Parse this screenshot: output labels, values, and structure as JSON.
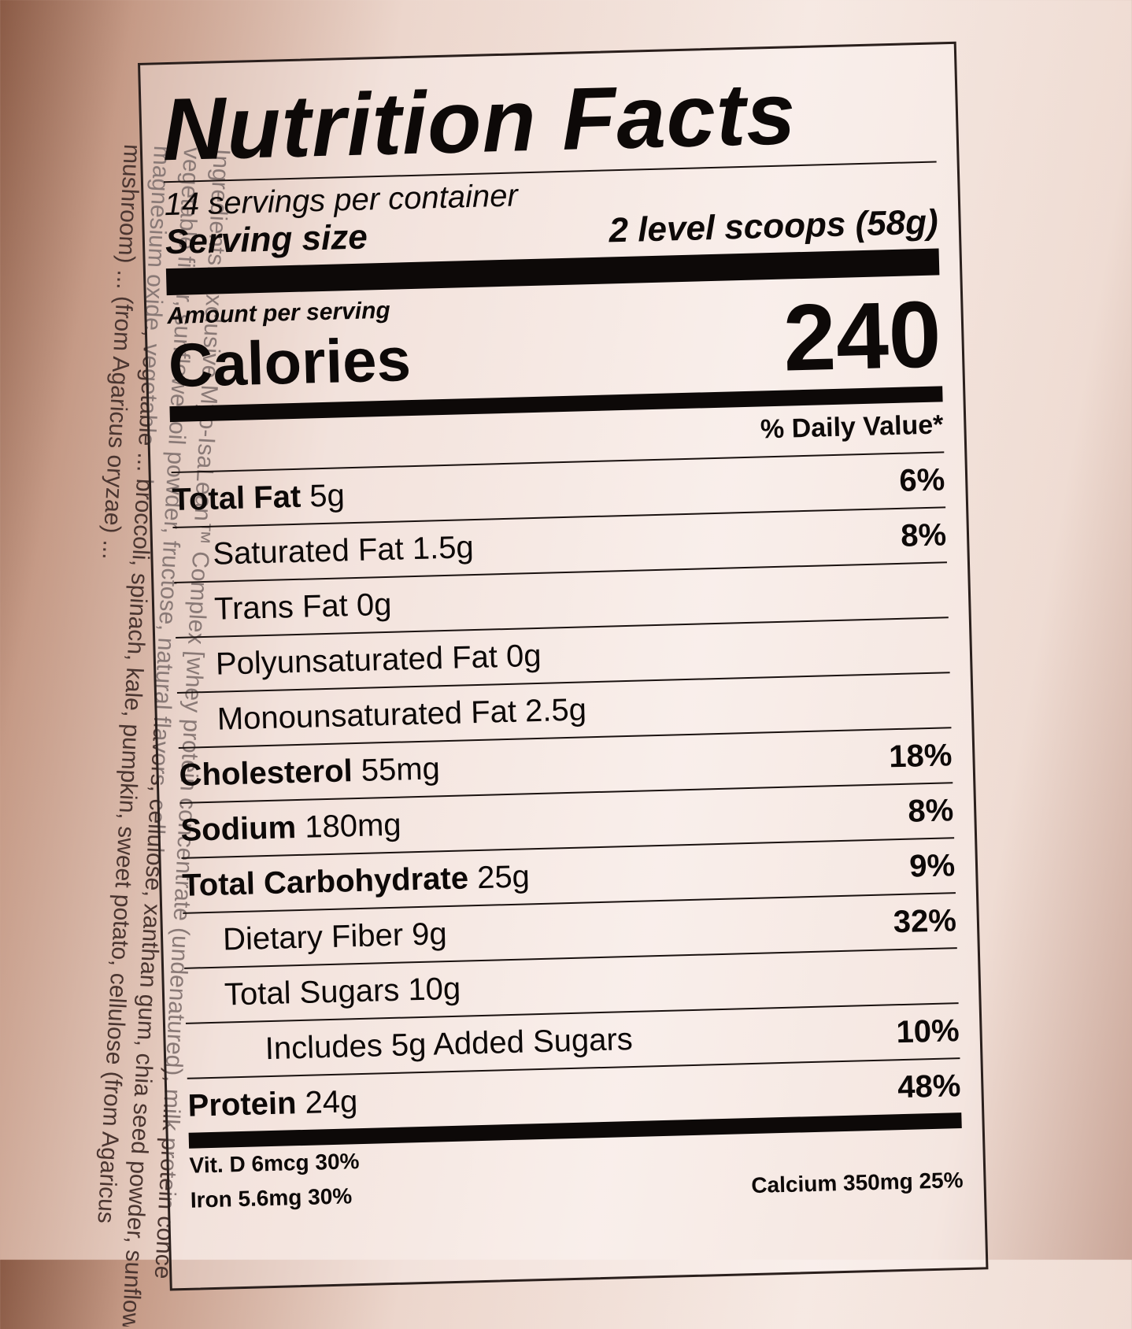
{
  "ingredients": {
    "lines": [
      "Ingredients: Exclusive Myo-IsaLean™ Complex [whey protein concentrate (undenatured), milk protein conce",
      "vegetable fiber, sunflower oil powder, fructose, natural flavors, cellulose, xanthan gum, chia seed powder, sunflower",
      "magnesium oxide, vegetable ... broccoli, spinach, kale, pumpkin, sweet potato, cellulose (from Agaricus",
      "mushroom) ... (from Agaricus oryzae) ..."
    ]
  },
  "header": {
    "title": "Nutrition Facts"
  },
  "servings": {
    "per_container": "14 servings per container",
    "size_label": "Serving size",
    "size_value": "2 level scoops (58g)"
  },
  "calories": {
    "amount_label": "Amount per serving",
    "label": "Calories",
    "value": "240"
  },
  "daily_value_header": "% Daily Value*",
  "nutrients": [
    {
      "name": "Total Fat",
      "amount": "5g",
      "dv": "6%",
      "bold": true,
      "indent": 0
    },
    {
      "name": "Saturated Fat",
      "amount": "1.5g",
      "dv": "8%",
      "bold": false,
      "indent": 1
    },
    {
      "name": "Trans Fat",
      "amount": "0g",
      "bold": false,
      "indent": 1
    },
    {
      "name": "Polyunsaturated Fat",
      "amount": "0g",
      "bold": false,
      "indent": 1
    },
    {
      "name": "Monounsaturated Fat",
      "amount": "2.5g",
      "bold": false,
      "indent": 1
    },
    {
      "name": "Cholesterol",
      "amount": "55mg",
      "dv": "18%",
      "bold": true,
      "indent": 0
    },
    {
      "name": "Sodium",
      "amount": "180mg",
      "dv": "8%",
      "bold": true,
      "indent": 0
    },
    {
      "name": "Total Carbohydrate",
      "amount": "25g",
      "dv": "9%",
      "bold": true,
      "indent": 0
    },
    {
      "name": "Dietary Fiber",
      "amount": "9g",
      "dv": "32%",
      "bold": false,
      "indent": 1
    },
    {
      "name": "Total Sugars",
      "amount": "10g",
      "bold": false,
      "indent": 1
    },
    {
      "name": "Includes 5g Added Sugars",
      "dv": "10%",
      "bold": false,
      "indent": 2
    },
    {
      "name": "Protein",
      "amount": "24g",
      "dv": "48%",
      "bold": true,
      "indent": 0
    }
  ],
  "vitamins": [
    "Vit. D 6mcg 30%",
    "Iron 5.6mg 30%",
    "Calcium 350mg 25%"
  ]
}
